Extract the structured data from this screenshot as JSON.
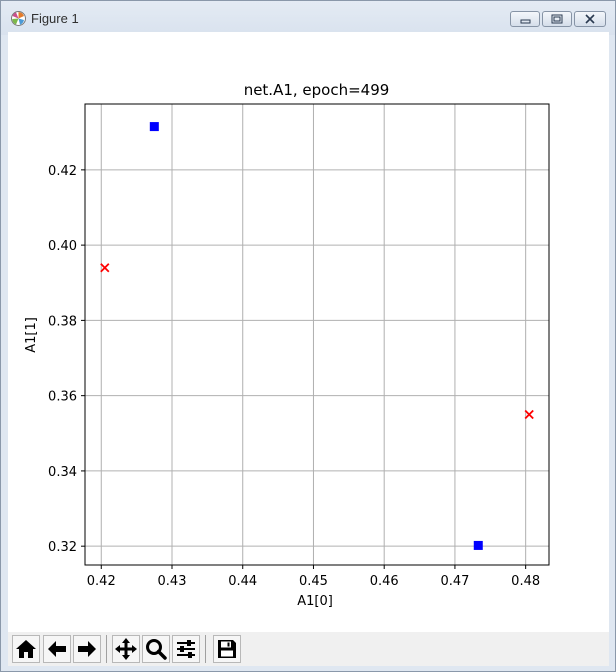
{
  "window": {
    "title": "Figure 1",
    "controls": [
      "minimize",
      "maximize",
      "close"
    ]
  },
  "toolbar": {
    "buttons": [
      {
        "name": "home",
        "icon": "home-icon"
      },
      {
        "name": "back",
        "icon": "arrow-left-icon"
      },
      {
        "name": "forward",
        "icon": "arrow-right-icon"
      },
      {
        "name": "pan",
        "icon": "move-icon"
      },
      {
        "name": "zoom",
        "icon": "magnifier-icon"
      },
      {
        "name": "configure-subplots",
        "icon": "sliders-icon"
      },
      {
        "name": "save",
        "icon": "floppy-disk-icon"
      }
    ]
  },
  "chart_data": {
    "type": "scatter",
    "title": "net.A1, epoch=499",
    "xlabel": "A1[0]",
    "ylabel": "A1[1]",
    "xlim": [
      0.4177,
      0.4833
    ],
    "ylim": [
      0.315,
      0.4375
    ],
    "xticks": [
      0.42,
      0.43,
      0.44,
      0.45,
      0.46,
      0.47,
      0.48
    ],
    "xtick_labels": [
      "0.42",
      "0.43",
      "0.44",
      "0.45",
      "0.46",
      "0.47",
      "0.48"
    ],
    "yticks": [
      0.32,
      0.34,
      0.36,
      0.38,
      0.4,
      0.42
    ],
    "ytick_labels": [
      "0.32",
      "0.34",
      "0.36",
      "0.38",
      "0.40",
      "0.42"
    ],
    "grid": true,
    "legend": "none",
    "series": [
      {
        "marker": "square",
        "color": "#0000ff",
        "points": [
          [
            0.4275,
            0.4315
          ],
          [
            0.4733,
            0.3202
          ]
        ]
      },
      {
        "marker": "x",
        "color": "#ff0000",
        "points": [
          [
            0.4205,
            0.394
          ],
          [
            0.4805,
            0.355
          ]
        ]
      }
    ]
  }
}
